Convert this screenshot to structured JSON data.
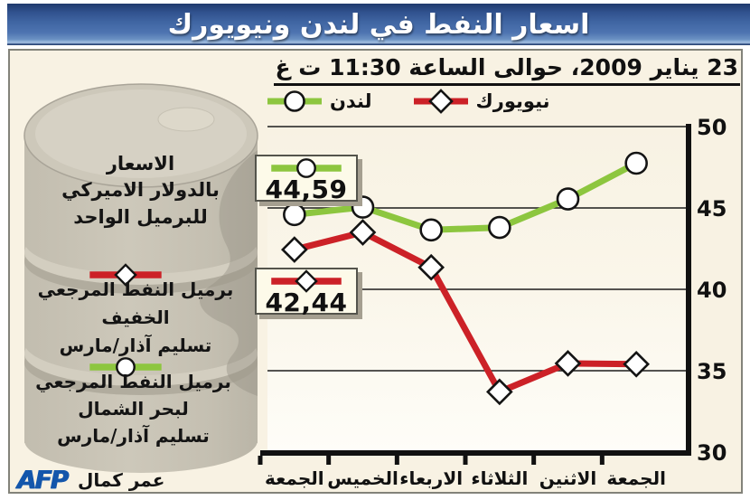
{
  "title": "اسعار النفط في لندن ونيويورك",
  "date_line": "23 يناير 2009، حوالى الساعة 11:30 ت غ",
  "legend": {
    "london": "لندن",
    "newyork": "نيويورك"
  },
  "callouts": {
    "london_value": "44,59",
    "newyork_value": "42,44"
  },
  "left_panel": {
    "pricing_note": [
      "الاسعار",
      "بالدولار الاميركي",
      "للبرميل الواحد"
    ],
    "ny_label": [
      "برميل النفط المرجعي الخفيف",
      "تسليم آذار/مارس"
    ],
    "london_label": [
      "برميل النفط المرجعي",
      "لبحر الشمال",
      "تسليم آذار/مارس"
    ]
  },
  "credit": {
    "agency": "AFP",
    "author": "عمر كمال"
  },
  "colors": {
    "london_line": "#8dc63f",
    "newyork_line": "#cc2127",
    "titlebar_blue": "#4066a3",
    "background_cream": "#f8f2e3",
    "callout_bg": "#fdfae9",
    "afp_blue": "#1356ab",
    "axis_black": "#111111"
  },
  "chart_data": {
    "type": "line",
    "direction": "rtl",
    "title": "اسعار النفط في لندن ونيويورك",
    "categories": [
      "الجمعة",
      "الخميس",
      "الاربعاء",
      "الثلاثاء",
      "الاثنين",
      "الجمعة"
    ],
    "series": [
      {
        "key": "london",
        "name": "لندن",
        "color": "#8dc63f",
        "marker": "circle",
        "values": [
          44.59,
          45.05,
          43.65,
          43.8,
          45.55,
          47.75
        ],
        "latest_label": "44,59"
      },
      {
        "key": "newyork",
        "name": "نيويورك",
        "color": "#cc2127",
        "marker": "diamond",
        "values": [
          42.44,
          43.5,
          41.35,
          33.7,
          35.45,
          35.4
        ],
        "latest_label": "42,44"
      }
    ],
    "ylim": [
      30,
      50
    ],
    "yticks": [
      50,
      45,
      40,
      35,
      30
    ],
    "ylabel": "",
    "xlabel": "",
    "grid": true,
    "legend_position": "top",
    "note": "latest values at left, time flows right-to-left"
  }
}
